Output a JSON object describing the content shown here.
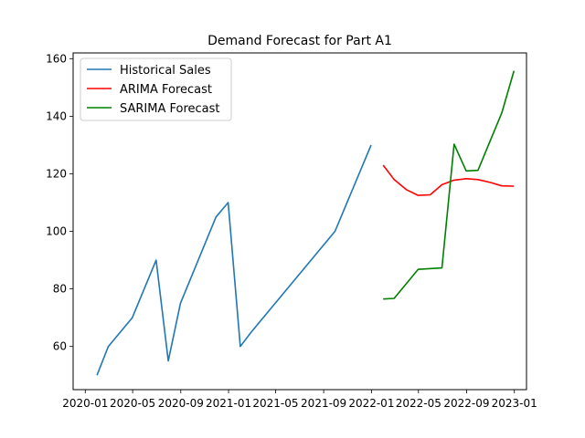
{
  "chart_data": {
    "type": "line",
    "title": "Demand Forecast for Part A1",
    "xlabel": "",
    "ylabel": "",
    "x_ticks": [
      "2020-01",
      "2020-05",
      "2020-09",
      "2021-01",
      "2021-05",
      "2021-09",
      "2022-01",
      "2022-05",
      "2022-09",
      "2023-01"
    ],
    "y_ticks": [
      60,
      80,
      100,
      120,
      140,
      160
    ],
    "xlim": [
      "2019-12-01",
      "2023-02-01"
    ],
    "ylim": [
      45,
      162
    ],
    "grid": false,
    "legend_position": "top-left",
    "series": [
      {
        "name": "Historical Sales",
        "color": "#1f77b4",
        "x": [
          "2020-01-31",
          "2020-02-29",
          "2020-04-30",
          "2020-06-30",
          "2020-07-31",
          "2020-08-31",
          "2020-11-30",
          "2020-12-31",
          "2021-01-31",
          "2021-02-28",
          "2021-09-30",
          "2021-12-31"
        ],
        "y": [
          50,
          60,
          70,
          90,
          55,
          75,
          105,
          110,
          60,
          65,
          100,
          130
        ]
      },
      {
        "name": "ARIMA Forecast",
        "color": "#ff0000",
        "x": [
          "2022-01-31",
          "2022-02-28",
          "2022-03-31",
          "2022-04-30",
          "2022-05-31",
          "2022-06-30",
          "2022-07-31",
          "2022-08-31",
          "2022-09-30",
          "2022-10-31",
          "2022-11-30",
          "2022-12-31"
        ],
        "y": [
          123,
          118,
          114.5,
          112.5,
          112.7,
          116.2,
          117.8,
          118.3,
          118,
          117,
          115.8,
          115.7
        ]
      },
      {
        "name": "SARIMA Forecast",
        "color": "#008000",
        "x": [
          "2022-01-31",
          "2022-02-28",
          "2022-04-30",
          "2022-06-30",
          "2022-07-31",
          "2022-08-31",
          "2022-09-30",
          "2022-11-30",
          "2022-12-31"
        ],
        "y": [
          76.5,
          76.7,
          86.8,
          87.3,
          130.3,
          121,
          121.2,
          141.2,
          155.8
        ]
      }
    ]
  }
}
